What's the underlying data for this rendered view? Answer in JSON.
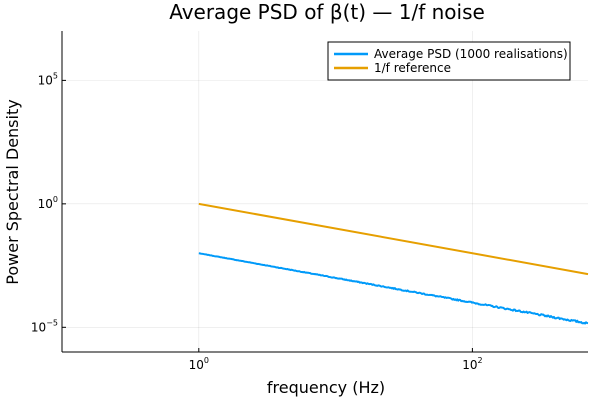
{
  "chart_data": {
    "type": "line",
    "title": "Average PSD of β(t) — 1/f noise",
    "xlabel": "frequency (Hz)",
    "ylabel": "Power Spectral Density",
    "xscale": "log10",
    "yscale": "log10",
    "xlim": [
      0.1,
      700
    ],
    "ylim": [
      1e-06,
      10000000
    ],
    "grid": true,
    "legend_position": "top-right",
    "x_ticks": [
      {
        "value": 1,
        "label_base": "10",
        "label_exp": "0"
      },
      {
        "value": 100,
        "label_base": "10",
        "label_exp": "2"
      }
    ],
    "y_ticks": [
      {
        "value": 1e-05,
        "label_base": "10",
        "label_exp": "−5"
      },
      {
        "value": 1,
        "label_base": "10",
        "label_exp": "0"
      },
      {
        "value": 100000,
        "label_base": "10",
        "label_exp": "5"
      }
    ],
    "series": [
      {
        "name": "Average PSD (1000 realisations)",
        "color": "#009af9",
        "noisy": true,
        "x": [
          1,
          700
        ],
        "y": [
          0.01,
          1.43e-05
        ]
      },
      {
        "name": "1/f reference",
        "color": "#e69f00",
        "noisy": false,
        "x": [
          1,
          700
        ],
        "y": [
          1,
          0.00143
        ]
      }
    ]
  }
}
